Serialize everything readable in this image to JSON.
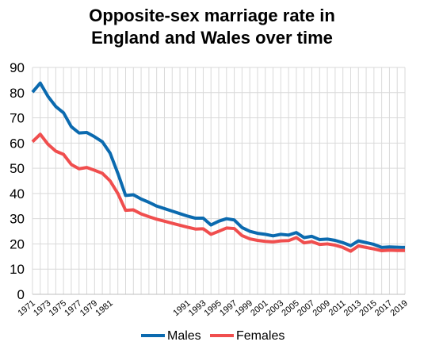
{
  "chart_data": {
    "type": "line",
    "title_lines": [
      "Opposite-sex marriage rate in",
      "England and Wales over time"
    ],
    "x": [
      1971,
      1972,
      1973,
      1974,
      1975,
      1976,
      1977,
      1978,
      1979,
      1980,
      1981,
      1982,
      1983,
      1984,
      1985,
      1986,
      1987,
      1988,
      1989,
      1990,
      1991,
      1992,
      1993,
      1994,
      1995,
      1996,
      1997,
      1998,
      1999,
      2000,
      2001,
      2002,
      2003,
      2004,
      2005,
      2006,
      2007,
      2008,
      2009,
      2010,
      2011,
      2012,
      2013,
      2014,
      2015,
      2016,
      2017,
      2018,
      2019
    ],
    "x_tick_labels": [
      "1971",
      "1973",
      "1975",
      "1977",
      "1979",
      "1981",
      "1991",
      "1993",
      "1995",
      "1997",
      "1999",
      "2001",
      "2003",
      "2005",
      "2007",
      "2009",
      "2011",
      "2013",
      "2015",
      "2017",
      "2019"
    ],
    "ylim": [
      0,
      90
    ],
    "y_ticks": [
      0,
      10,
      20,
      30,
      40,
      50,
      60,
      70,
      80,
      90
    ],
    "grid": true,
    "legend_position": "bottom",
    "series": [
      {
        "name": "Males",
        "color": "#0b6aaf",
        "values": [
          80.2,
          83.8,
          78.5,
          74.5,
          72.0,
          66.5,
          64.0,
          64.2,
          62.5,
          60.5,
          56.0,
          48.0,
          39.2,
          39.5,
          37.8,
          36.5,
          35.0,
          34.0,
          33.0,
          32.0,
          31.0,
          30.2,
          30.2,
          27.5,
          29.0,
          30.0,
          29.5,
          26.5,
          25.0,
          24.2,
          23.8,
          23.2,
          23.8,
          23.5,
          24.5,
          22.5,
          23.0,
          21.7,
          21.9,
          21.4,
          20.5,
          19.3,
          21.2,
          20.5,
          19.8,
          18.6,
          18.8,
          18.7,
          18.6
        ]
      },
      {
        "name": "Females",
        "color": "#f04e4e",
        "values": [
          60.5,
          63.5,
          59.5,
          56.8,
          55.5,
          51.5,
          49.8,
          50.3,
          49.2,
          48.0,
          45.0,
          40.0,
          33.3,
          33.5,
          31.9,
          30.8,
          29.8,
          29.0,
          28.2,
          27.4,
          26.6,
          25.9,
          26.0,
          23.8,
          25.0,
          26.3,
          26.1,
          23.3,
          22.0,
          21.4,
          21.0,
          20.8,
          21.2,
          21.3,
          22.5,
          20.4,
          20.9,
          19.8,
          20.0,
          19.5,
          18.6,
          17.1,
          19.2,
          18.6,
          18.0,
          17.3,
          17.5,
          17.4,
          17.4
        ]
      }
    ]
  }
}
